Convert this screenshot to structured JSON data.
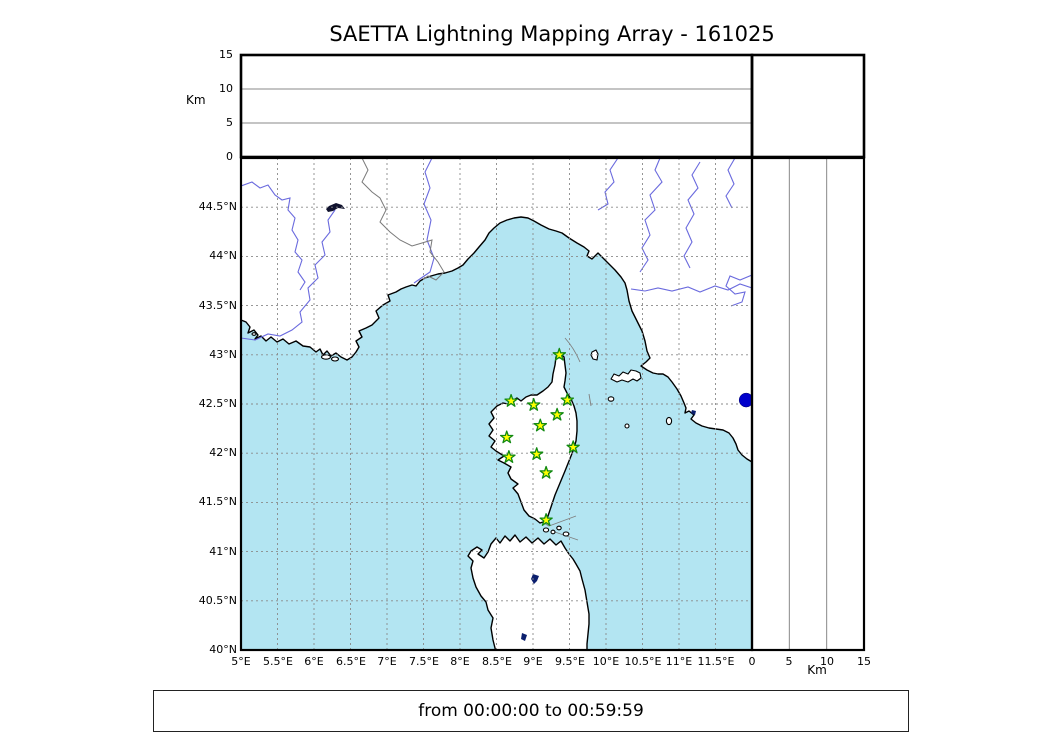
{
  "title": "SAETTA Lightning Mapping Array - 161025",
  "footer": {
    "time_range": "from 00:00:00 to 00:59:59"
  },
  "axes": {
    "alt_axis_label": "Km",
    "alt_left_tick_labels": [
      "15",
      "10",
      "5",
      "0"
    ],
    "alt_left_tick_values": [
      15,
      10,
      5,
      0
    ],
    "alt_bottom_tick_labels": [
      "0",
      "5",
      "10",
      "15"
    ],
    "alt_bottom_tick_values": [
      0,
      5,
      10,
      15
    ],
    "lon_tick_labels": [
      "5°E",
      "5.5°E",
      "6°E",
      "6.5°E",
      "7°E",
      "7.5°E",
      "8°E",
      "8.5°E",
      "9°E",
      "9.5°E",
      "10°E",
      "10.5°E",
      "11°E",
      "11.5°E"
    ],
    "lon_tick_values": [
      5,
      5.5,
      6,
      6.5,
      7,
      7.5,
      8,
      8.5,
      9,
      9.5,
      10,
      10.5,
      11,
      11.5
    ],
    "lat_tick_labels": [
      "44.5°N",
      "44°N",
      "43.5°N",
      "43°N",
      "42.5°N",
      "42°N",
      "41.5°N",
      "41°N",
      "40.5°N",
      "40°N"
    ],
    "lat_tick_values": [
      44.5,
      44,
      43.5,
      43,
      42.5,
      42,
      41.5,
      41,
      40.5,
      40
    ]
  },
  "chart_data": {
    "type": "scatter",
    "subtype": "geographic-map-with-altitude-panels",
    "title": "SAETTA Lightning Mapping Array - 161025",
    "time_window": "from 00:00:00 to 00:59:59",
    "map_extent": {
      "lon_min": 5,
      "lon_max": 12,
      "lat_min": 40,
      "lat_max": 45
    },
    "grid_interval_deg": 0.5,
    "altitude_axis_km": {
      "min": 0,
      "max": 15,
      "ticks": [
        0,
        5,
        10,
        15
      ],
      "gridlines": [
        5,
        10
      ],
      "label": "Km"
    },
    "stations": [
      {
        "lon": 9.36,
        "lat": 43.0
      },
      {
        "lon": 8.7,
        "lat": 42.53
      },
      {
        "lon": 9.01,
        "lat": 42.49
      },
      {
        "lon": 9.47,
        "lat": 42.54
      },
      {
        "lon": 9.33,
        "lat": 42.39
      },
      {
        "lon": 9.1,
        "lat": 42.28
      },
      {
        "lon": 8.64,
        "lat": 42.16
      },
      {
        "lon": 9.55,
        "lat": 42.06
      },
      {
        "lon": 9.05,
        "lat": 41.99
      },
      {
        "lon": 8.67,
        "lat": 41.96
      },
      {
        "lon": 9.18,
        "lat": 41.8
      },
      {
        "lon": 9.18,
        "lat": 41.32
      }
    ],
    "sources": [
      {
        "lon": 11.92,
        "lat": 42.54
      }
    ],
    "colors": {
      "sea": "#b3e5f2",
      "land": "#ffffff",
      "coastline": "#000000",
      "river": "#6a6ade",
      "grid": "#8a8a8a",
      "country_border": "#7a7a7a",
      "station_fill": "#ffff00",
      "station_edge": "#128a12",
      "source_dot": "#0000cc",
      "lake": "#0b1f6e"
    },
    "legend": "none"
  }
}
